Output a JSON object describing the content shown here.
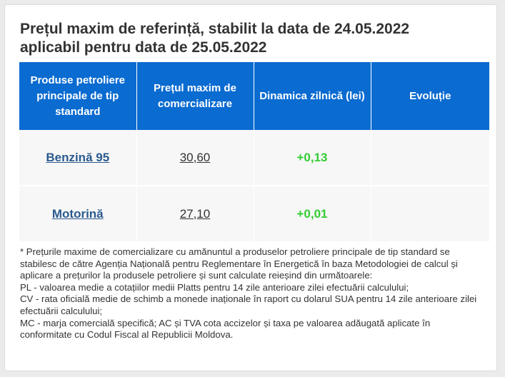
{
  "title": {
    "line1": "Prețul maxim de referință, stabilit la data de 24.05.2022",
    "line2": "aplicabil pentru data de 25.05.2022"
  },
  "table": {
    "headers": [
      "Produse petroliere principale de tip standard",
      "Prețul maxim de comercializare",
      "Dinamica zilnică (lei)",
      "Evoluție"
    ],
    "rows": [
      {
        "product": "Benzină 95",
        "price": "30,60",
        "delta": "+0,13",
        "evolution": ""
      },
      {
        "product": "Motorină",
        "price": "27,10",
        "delta": "+0,01",
        "evolution": ""
      }
    ]
  },
  "notes": {
    "intro": "* Prețurile maxime de comercializare cu amănuntul a produselor petroliere principale de tip standard se stabilesc de către Agenția Națională pentru Reglementare în Energetică în baza Metodologiei de calcul și aplicare a prețurilor la produsele petroliere și sunt calculate reieșind din următoarele:",
    "pl": "PL - valoarea medie a cotațiilor medii Platts pentru 14 zile anterioare zilei efectuării calculului;",
    "cv": "CV - rata oficială medie de schimb a monede inaționale în raport cu dolarul SUA pentru 14 zile anterioare zilei efectuării calculului;",
    "mc": "MC - marja comercială specifică; AC și TVA cota accizelor și taxa pe valoarea adăugată aplicate în conformitate cu Codul Fiscal al Republicii Moldova."
  },
  "colors": {
    "header_bg": "#0a6bd1",
    "link": "#2a5a8e",
    "positive_delta": "#33cc33",
    "cell_bg": "#f7f7f7"
  }
}
